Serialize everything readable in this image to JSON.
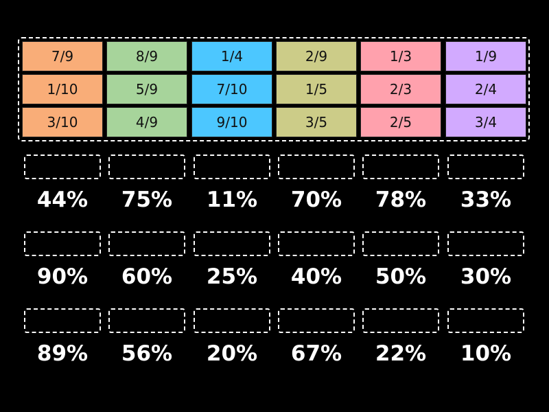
{
  "tiles": [
    {
      "label": "7/9",
      "color": "#f9ad78"
    },
    {
      "label": "8/9",
      "color": "#a7d49b"
    },
    {
      "label": "1/4",
      "color": "#4cc7ff"
    },
    {
      "label": "2/9",
      "color": "#cccc88"
    },
    {
      "label": "1/3",
      "color": "#ffa1ad"
    },
    {
      "label": "1/9",
      "color": "#d2aaff"
    },
    {
      "label": "1/10",
      "color": "#f9ad78"
    },
    {
      "label": "5/9",
      "color": "#a7d49b"
    },
    {
      "label": "7/10",
      "color": "#4cc7ff"
    },
    {
      "label": "1/5",
      "color": "#cccc88"
    },
    {
      "label": "2/3",
      "color": "#ffa1ad"
    },
    {
      "label": "2/4",
      "color": "#d2aaff"
    },
    {
      "label": "3/10",
      "color": "#f9ad78"
    },
    {
      "label": "4/9",
      "color": "#a7d49b"
    },
    {
      "label": "9/10",
      "color": "#4cc7ff"
    },
    {
      "label": "3/5",
      "color": "#cccc88"
    },
    {
      "label": "2/5",
      "color": "#ffa1ad"
    },
    {
      "label": "3/4",
      "color": "#d2aaff"
    }
  ],
  "targets": [
    "44%",
    "75%",
    "11%",
    "70%",
    "78%",
    "33%",
    "90%",
    "60%",
    "25%",
    "40%",
    "50%",
    "30%",
    "89%",
    "56%",
    "20%",
    "67%",
    "22%",
    "10%"
  ]
}
